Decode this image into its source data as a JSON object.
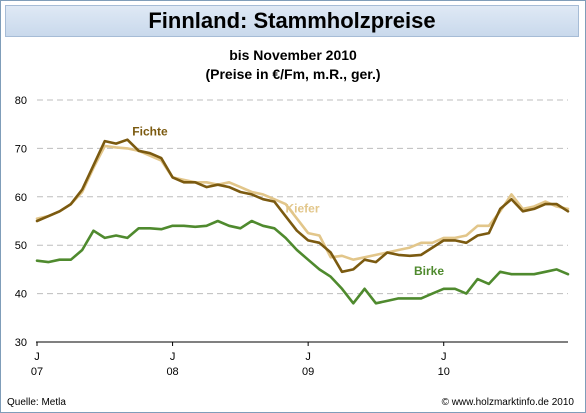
{
  "title": "Finnland: Stammholzpreise",
  "footer": {
    "source": "Quelle: Metla",
    "copyright": "© www.holzmarktinfo.de 2010"
  },
  "chart_data": {
    "type": "line",
    "title": "Finnland: Stammholzpreise",
    "subtitle": [
      "bis November 2010",
      "(Preise in €/Fm, m.R., ger.)"
    ],
    "xlabel": "",
    "ylabel": "",
    "ylim": [
      30,
      80
    ],
    "yticks": [
      30,
      40,
      50,
      60,
      70,
      80
    ],
    "grid": true,
    "xlim": [
      0,
      47
    ],
    "xticks": [
      {
        "x": 0,
        "month": "J",
        "year": "07"
      },
      {
        "x": 12,
        "month": "J",
        "year": "08"
      },
      {
        "x": 24,
        "month": "J",
        "year": "09"
      },
      {
        "x": 36,
        "month": "J",
        "year": "10"
      }
    ],
    "series": [
      {
        "name": "Kiefer",
        "color": "#e2c68a",
        "label_pos": [
          23.5,
          56.8
        ],
        "values": [
          55.5,
          56.0,
          57.0,
          58.5,
          61.0,
          66.0,
          70.5,
          70.2,
          70.0,
          69.5,
          68.5,
          67.5,
          64.0,
          63.5,
          63.0,
          63.0,
          62.5,
          63.0,
          62.0,
          61.0,
          60.5,
          59.5,
          58.5,
          55.5,
          52.5,
          52.0,
          47.5,
          47.8,
          47.0,
          47.5,
          48.0,
          48.5,
          49.0,
          49.5,
          50.5,
          50.5,
          51.5,
          51.5,
          52.0,
          54.0,
          54.0,
          57.0,
          60.5,
          57.5,
          58.0,
          59.0,
          58.0,
          57.5
        ]
      },
      {
        "name": "Fichte",
        "color": "#7b5a10",
        "label_pos": [
          10.0,
          72.7
        ],
        "values": [
          55.0,
          56.0,
          57.0,
          58.5,
          61.5,
          66.5,
          71.5,
          71.0,
          71.8,
          69.5,
          69.0,
          68.0,
          64.0,
          63.0,
          63.0,
          62.0,
          62.5,
          62.0,
          61.0,
          60.5,
          59.5,
          59.0,
          56.0,
          53.0,
          51.0,
          50.5,
          48.5,
          44.5,
          45.0,
          47.0,
          46.5,
          48.5,
          48.0,
          47.8,
          48.0,
          49.5,
          51.0,
          51.0,
          50.5,
          52.0,
          52.5,
          57.5,
          59.5,
          57.0,
          57.5,
          58.5,
          58.5,
          57.0
        ]
      },
      {
        "name": "Birke",
        "color": "#4f8a2e",
        "label_pos": [
          34.7,
          43.8
        ],
        "values": [
          46.8,
          46.5,
          47.0,
          47.0,
          49.0,
          53.0,
          51.5,
          52.0,
          51.5,
          53.5,
          53.5,
          53.3,
          54.0,
          54.0,
          53.8,
          54.0,
          55.0,
          54.0,
          53.5,
          55.0,
          54.0,
          53.5,
          51.5,
          49.0,
          47.0,
          45.0,
          43.5,
          41.0,
          38.0,
          41.0,
          38.0,
          38.5,
          39.0,
          39.0,
          39.0,
          40.0,
          41.0,
          41.0,
          40.0,
          43.0,
          42.0,
          44.5,
          44.0,
          44.0,
          44.0,
          44.5,
          45.0,
          44.0
        ]
      }
    ]
  }
}
